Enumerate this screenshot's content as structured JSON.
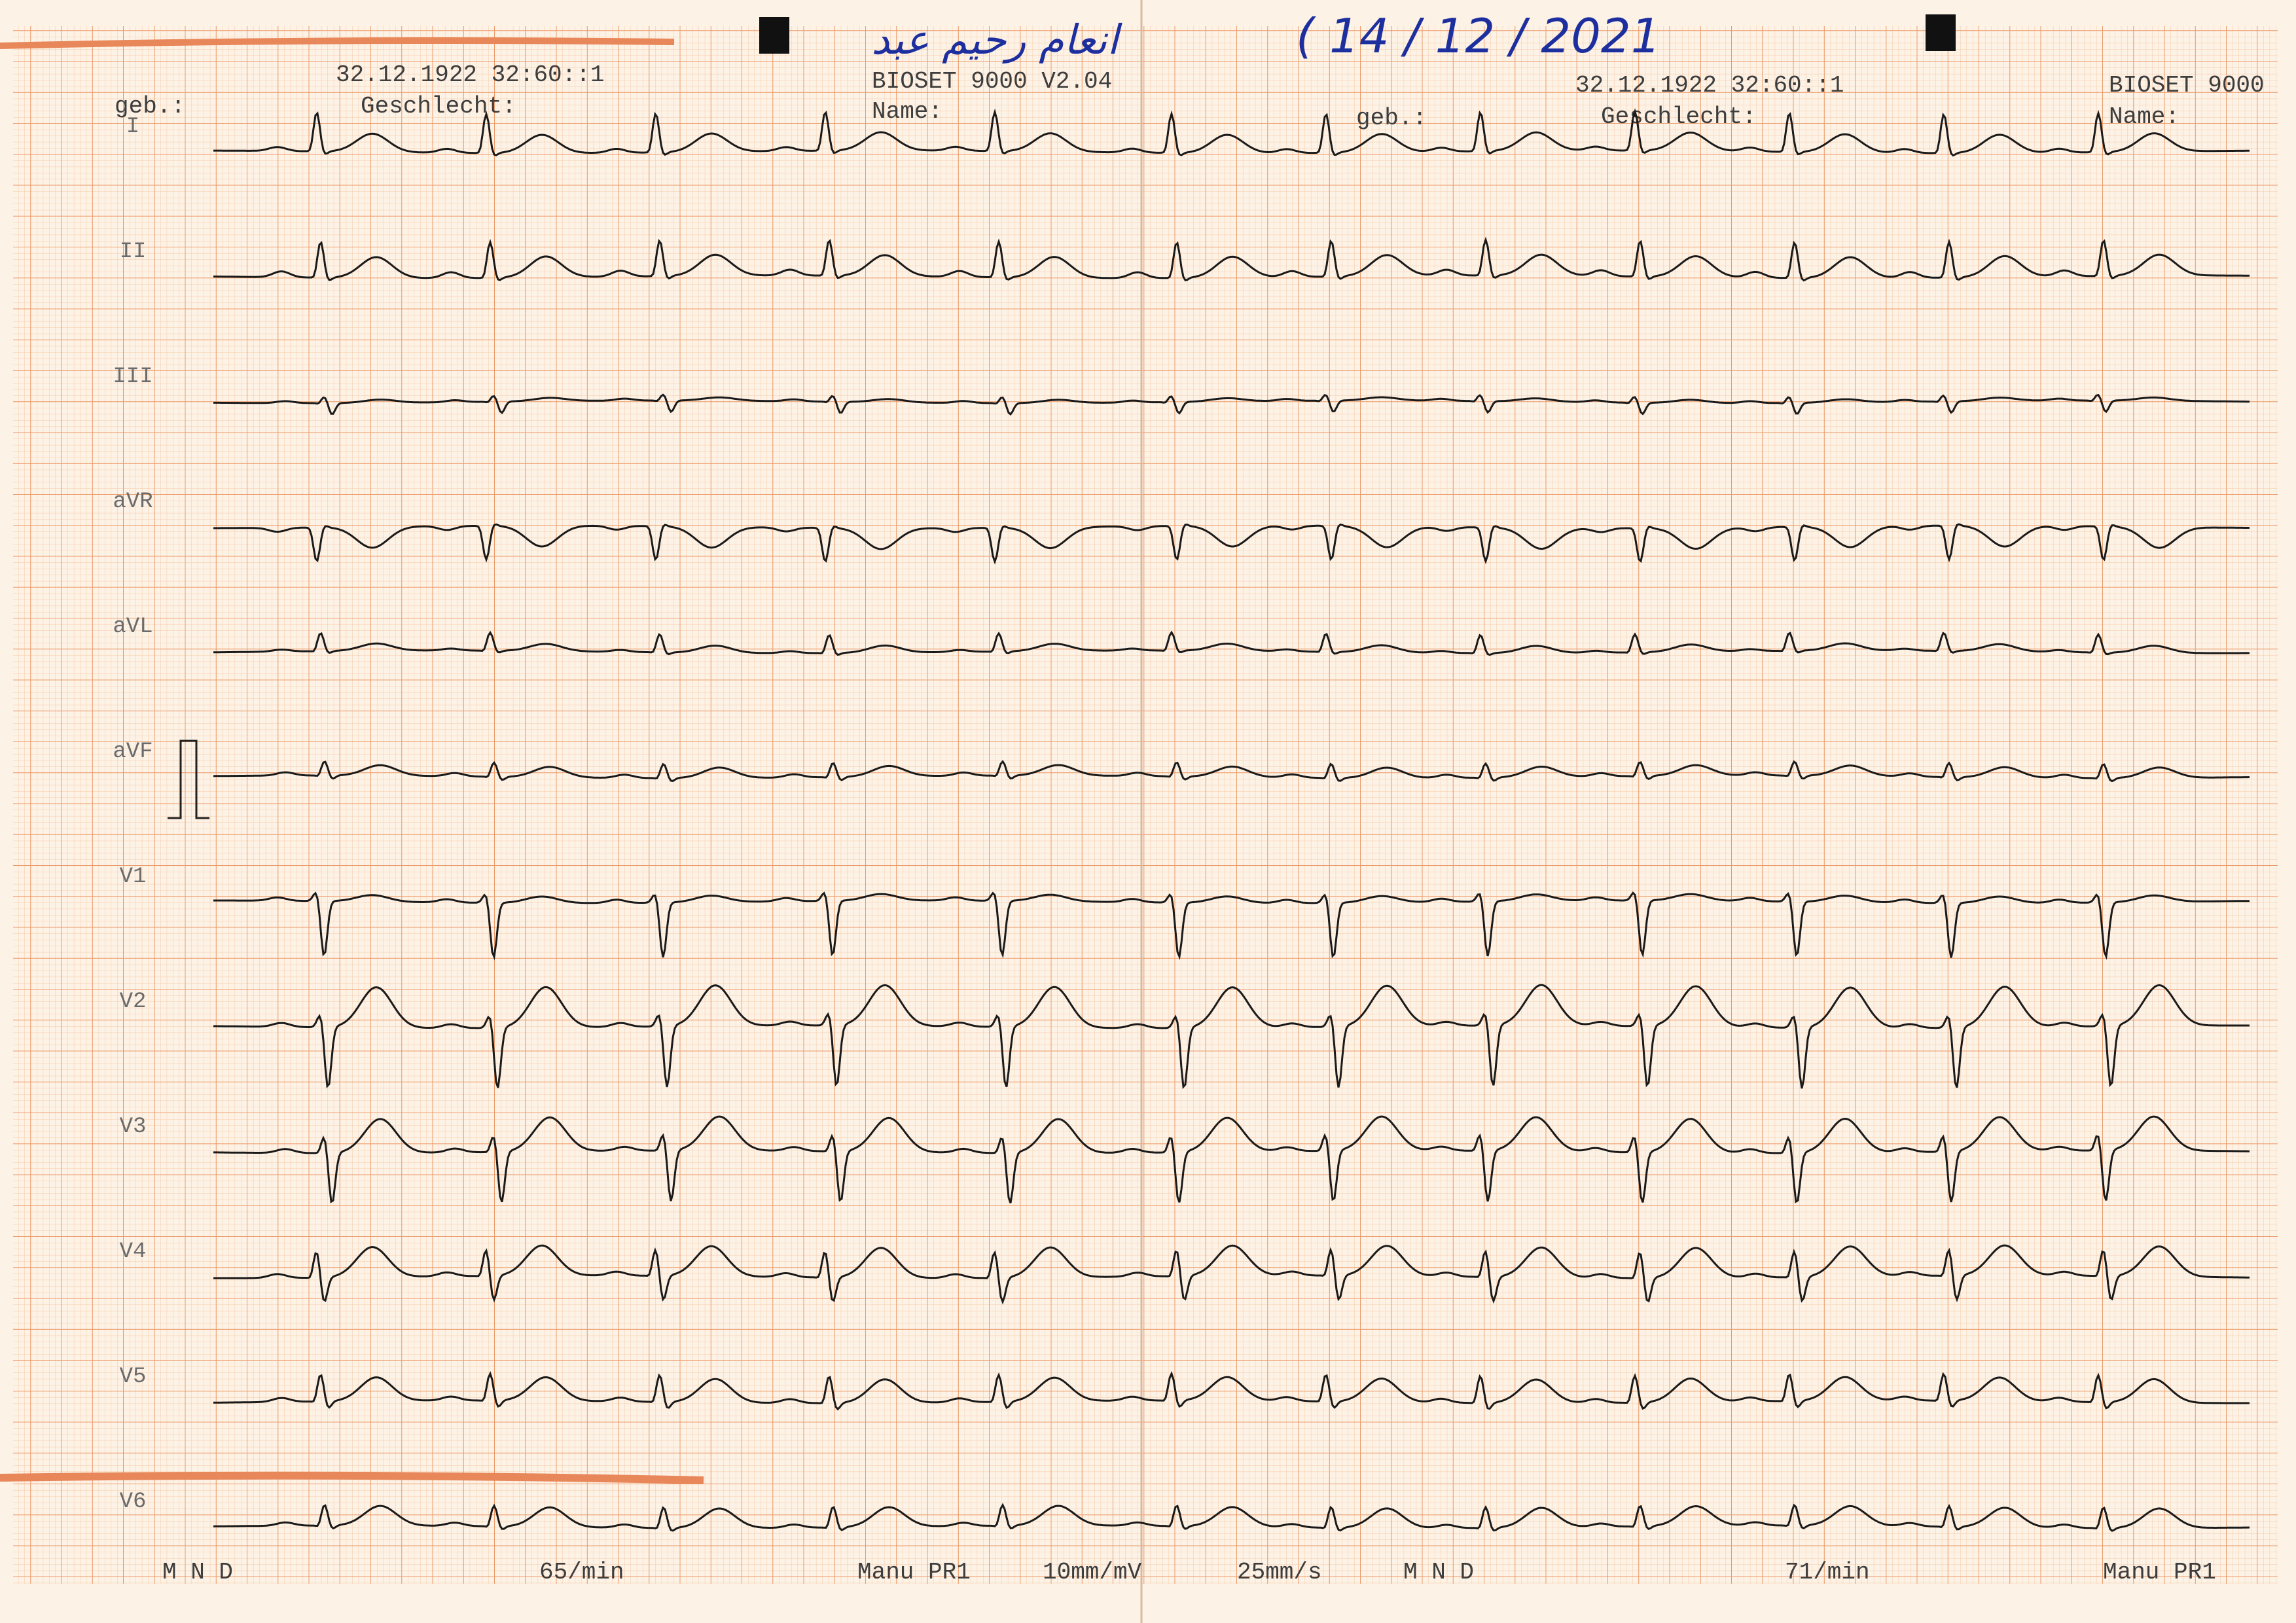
{
  "header": {
    "patient_name": "انعام رحيم عبد",
    "date": "( 14 / 12 / 2021",
    "left": {
      "datetime": "32.12.1922 32:60::1",
      "geb": "geb.:",
      "geschlecht": "Geschlecht:",
      "device": "BIOSET 9000 V2.04",
      "name": "Name:"
    },
    "right": {
      "datetime": "32.12.1922 32:60::1",
      "geb": "geb.:",
      "geschlecht": "Geschlecht:",
      "device": "BIOSET 9000",
      "name": "Name:"
    }
  },
  "leads": [
    "I",
    "II",
    "III",
    "aVR",
    "aVL",
    "aVF",
    "V1",
    "V2",
    "V3",
    "V4",
    "V5",
    "V6"
  ],
  "footer": [
    "M N D",
    "65/min",
    "Manu PR1",
    "10mm/mV",
    "25mm/s",
    "M N D",
    "71/min",
    "Manu PR1"
  ]
}
